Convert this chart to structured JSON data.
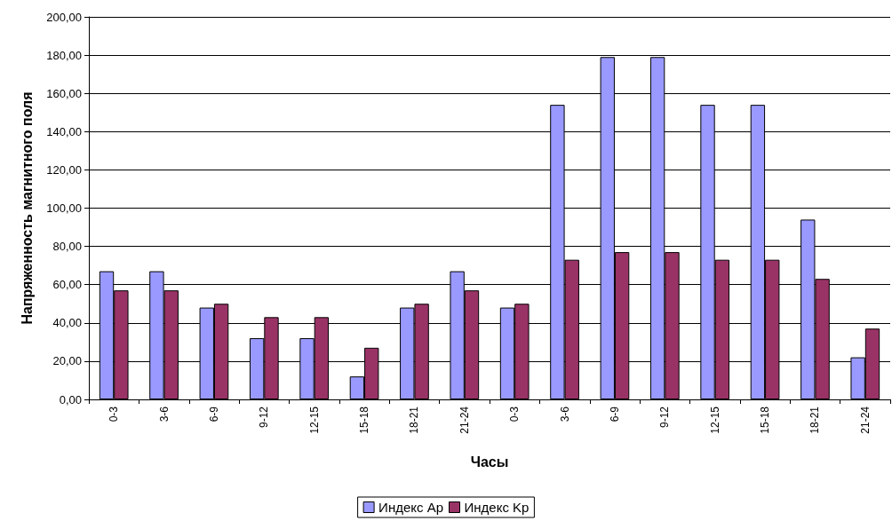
{
  "chart_data": {
    "type": "bar",
    "xlabel": "Часы",
    "ylabel": "Напряженность магнитного поля",
    "categories": [
      "0-3",
      "3-6",
      "6-9",
      "9-12",
      "12-15",
      "15-18",
      "18-21",
      "21-24",
      "0-3",
      "3-6",
      "6-9",
      "9-12",
      "12-15",
      "15-18",
      "18-21",
      "21-24"
    ],
    "series": [
      {
        "name": "Индекс Ap",
        "color": "#9999ff",
        "values": [
          67,
          67,
          48,
          32,
          32,
          12,
          48,
          67,
          48,
          154,
          179,
          179,
          154,
          154,
          94,
          22
        ]
      },
      {
        "name": "Индекс Kp",
        "color": "#993366",
        "values": [
          57,
          57,
          50,
          43,
          43,
          27,
          50,
          57,
          50,
          73,
          77,
          77,
          73,
          73,
          63,
          37
        ]
      }
    ],
    "ylim": [
      0,
      200
    ],
    "yticks": [
      {
        "value": 0,
        "label": "0,00"
      },
      {
        "value": 20,
        "label": "20,00"
      },
      {
        "value": 40,
        "label": "40,00"
      },
      {
        "value": 60,
        "label": "60,00"
      },
      {
        "value": 80,
        "label": "80,00"
      },
      {
        "value": 100,
        "label": "100,00"
      },
      {
        "value": 120,
        "label": "120,00"
      },
      {
        "value": 140,
        "label": "140,00"
      },
      {
        "value": 160,
        "label": "160,00"
      },
      {
        "value": 180,
        "label": "180,00"
      },
      {
        "value": 200,
        "label": "200,00"
      }
    ],
    "grid": "y",
    "legend": "bottom"
  }
}
